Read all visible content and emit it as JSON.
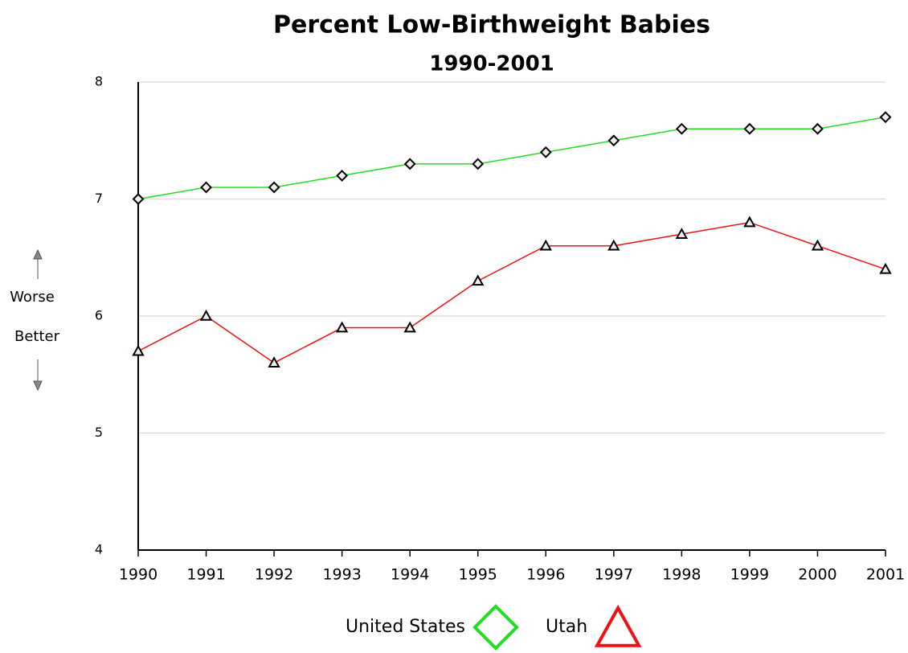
{
  "chart_data": {
    "type": "line",
    "title": "Percent Low-Birthweight Babies",
    "subtitle": "1990-2001",
    "annotations": [
      "Worse",
      "Better"
    ],
    "x": [
      1990,
      1991,
      1992,
      1993,
      1994,
      1995,
      1996,
      1997,
      1998,
      1999,
      2000,
      2001
    ],
    "xlim": [
      1990,
      2001
    ],
    "xticks": [
      1990,
      1991,
      1992,
      1993,
      1994,
      1995,
      1996,
      1997,
      1998,
      1999,
      2000,
      2001
    ],
    "ylim": [
      4,
      8
    ],
    "yticks": [
      4,
      5,
      6,
      7,
      8
    ],
    "grid": true,
    "legend": "bottom",
    "series": [
      {
        "name": "United States",
        "color": "#22dd22",
        "marker": "diamond",
        "values": [
          7.0,
          7.1,
          7.1,
          7.2,
          7.3,
          7.3,
          7.4,
          7.5,
          7.6,
          7.6,
          7.6,
          7.7
        ]
      },
      {
        "name": "Utah",
        "color": "#ee1111",
        "marker": "triangle",
        "values": [
          5.7,
          6.0,
          5.6,
          5.9,
          5.9,
          6.3,
          6.6,
          6.6,
          6.7,
          6.8,
          6.6,
          6.4
        ]
      }
    ]
  }
}
